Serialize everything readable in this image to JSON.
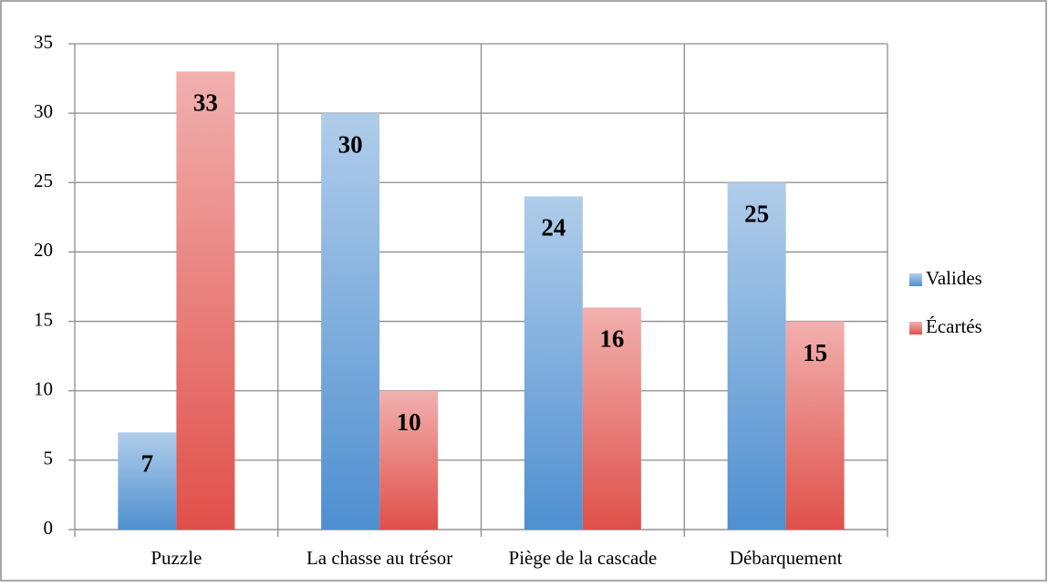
{
  "chart_data": {
    "type": "bar",
    "categories": [
      "Puzzle",
      "La chasse au trésor",
      "Piège de la cascade",
      "Débarquement"
    ],
    "series": [
      {
        "name": "Valides",
        "color": "#4f8fd0",
        "values": [
          7,
          30,
          24,
          25
        ]
      },
      {
        "name": "Écartés",
        "color": "#e0504a",
        "values": [
          33,
          10,
          16,
          15
        ]
      }
    ],
    "ylim": [
      0,
      35
    ],
    "yticks": [
      0,
      5,
      10,
      15,
      20,
      25,
      30,
      35
    ],
    "grid": true,
    "legend": "right"
  }
}
